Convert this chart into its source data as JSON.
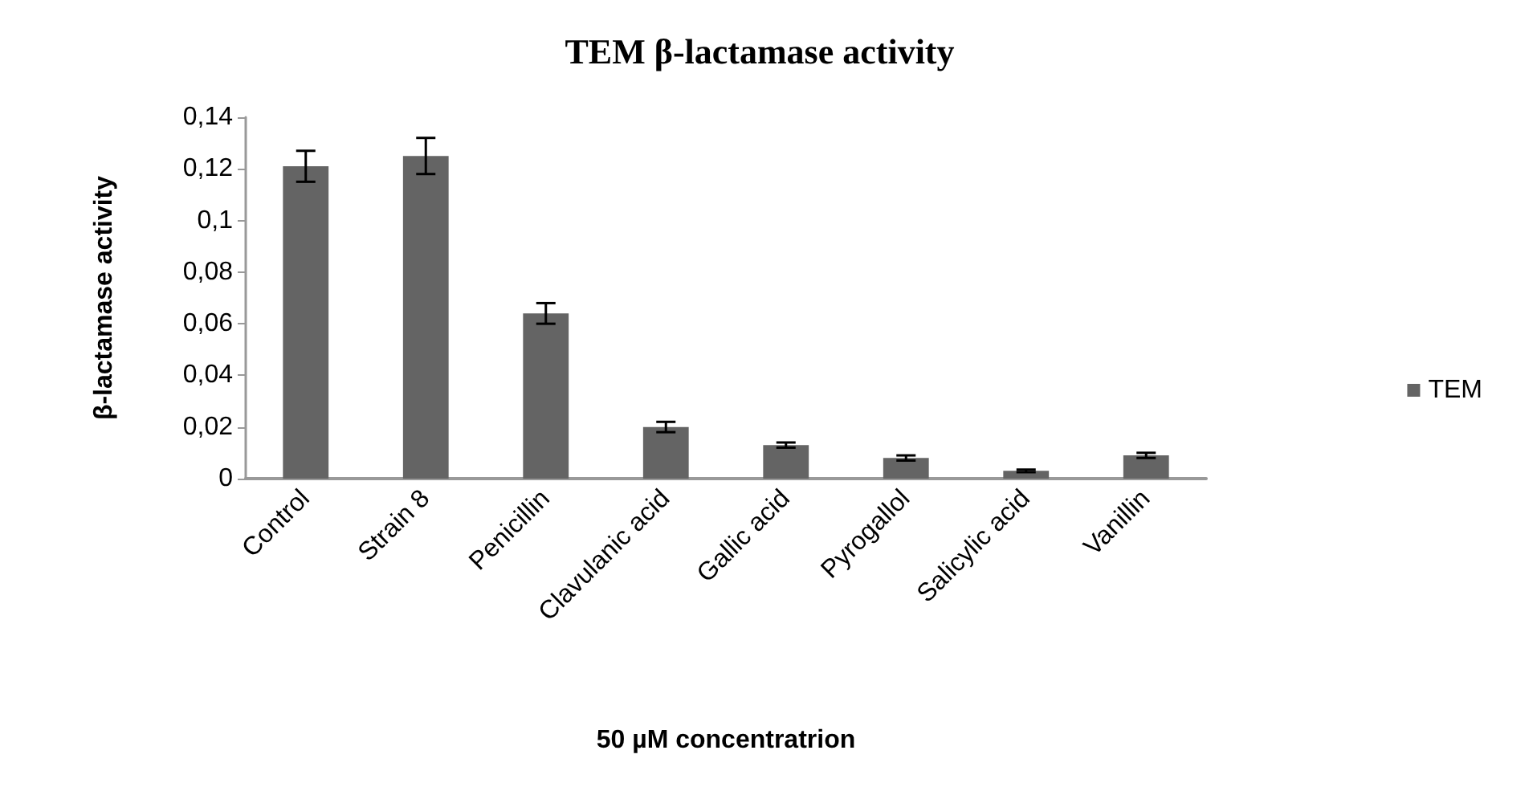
{
  "chart_data": {
    "type": "bar",
    "title": "TEM β-lactamase activity",
    "xlabel": "50 µM concentratrion",
    "ylabel": "β-lactamase activity",
    "categories": [
      "Control",
      "Strain 8",
      "Penicillin",
      "Clavulanic acid",
      "Gallic acid",
      "Pyrogallol",
      "Salicylic acid",
      "Vanillin"
    ],
    "series": [
      {
        "name": "TEM",
        "color": "#646464",
        "values": [
          0.121,
          0.125,
          0.064,
          0.02,
          0.013,
          0.008,
          0.003,
          0.009
        ],
        "errors": [
          0.006,
          0.007,
          0.004,
          0.002,
          0.001,
          0.001,
          0.0005,
          0.001
        ]
      }
    ],
    "ylim": [
      0,
      0.14
    ],
    "yticks": [
      {
        "value": 0,
        "label": "0"
      },
      {
        "value": 0.02,
        "label": "0,02"
      },
      {
        "value": 0.04,
        "label": "0,04"
      },
      {
        "value": 0.06,
        "label": "0,06"
      },
      {
        "value": 0.08,
        "label": "0,08"
      },
      {
        "value": 0.1,
        "label": "0,1"
      },
      {
        "value": 0.12,
        "label": "0,12"
      },
      {
        "value": 0.14,
        "label": "0,14"
      }
    ],
    "grid": false,
    "legend": "right"
  }
}
